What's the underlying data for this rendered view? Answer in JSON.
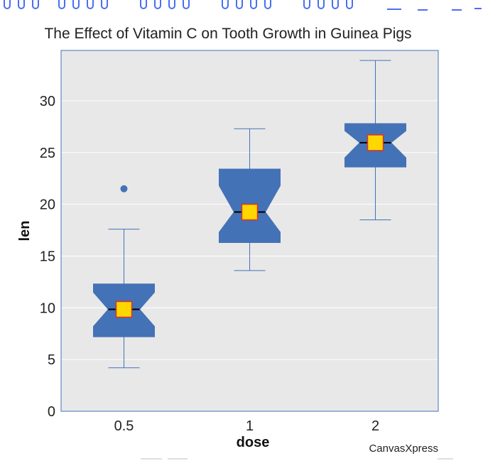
{
  "chart_data": {
    "type": "boxplot",
    "title": "The Effect of Vitamin C on Tooth Growth in Guinea Pigs",
    "xlabel": "dose",
    "ylabel": "len",
    "categories": [
      "0.5",
      "1",
      "2"
    ],
    "ylim": [
      0,
      35
    ],
    "yticks": [
      0,
      5,
      10,
      15,
      20,
      25,
      30
    ],
    "notched": true,
    "grid": true,
    "boxes": [
      {
        "category": "0.5",
        "whisker_low": 4.2,
        "q1": 7.2,
        "notch_low": 8.2,
        "median": 9.85,
        "notch_high": 11.5,
        "q3": 12.3,
        "whisker_high": 17.6,
        "mean": 10.6,
        "outliers": [
          21.5
        ]
      },
      {
        "category": "1",
        "whisker_low": 13.6,
        "q1": 16.3,
        "notch_low": 17.3,
        "median": 19.25,
        "notch_high": 21.8,
        "q3": 23.4,
        "whisker_high": 27.3,
        "mean": 19.7,
        "outliers": []
      },
      {
        "category": "2",
        "whisker_low": 18.5,
        "q1": 23.6,
        "notch_low": 24.5,
        "median": 25.95,
        "notch_high": 27.1,
        "q3": 27.8,
        "whisker_high": 33.9,
        "mean": 26.1,
        "outliers": []
      }
    ],
    "colors": {
      "box": "#4472b7",
      "whisker": "#4472b7",
      "median": "#000000",
      "mean_fill": "#ffd700",
      "mean_stroke": "#e0331c",
      "panel_bg": "#e8e8e8",
      "grid": "#ffffff",
      "frame": "#4472b7"
    }
  },
  "credit": "CanvasXpress"
}
